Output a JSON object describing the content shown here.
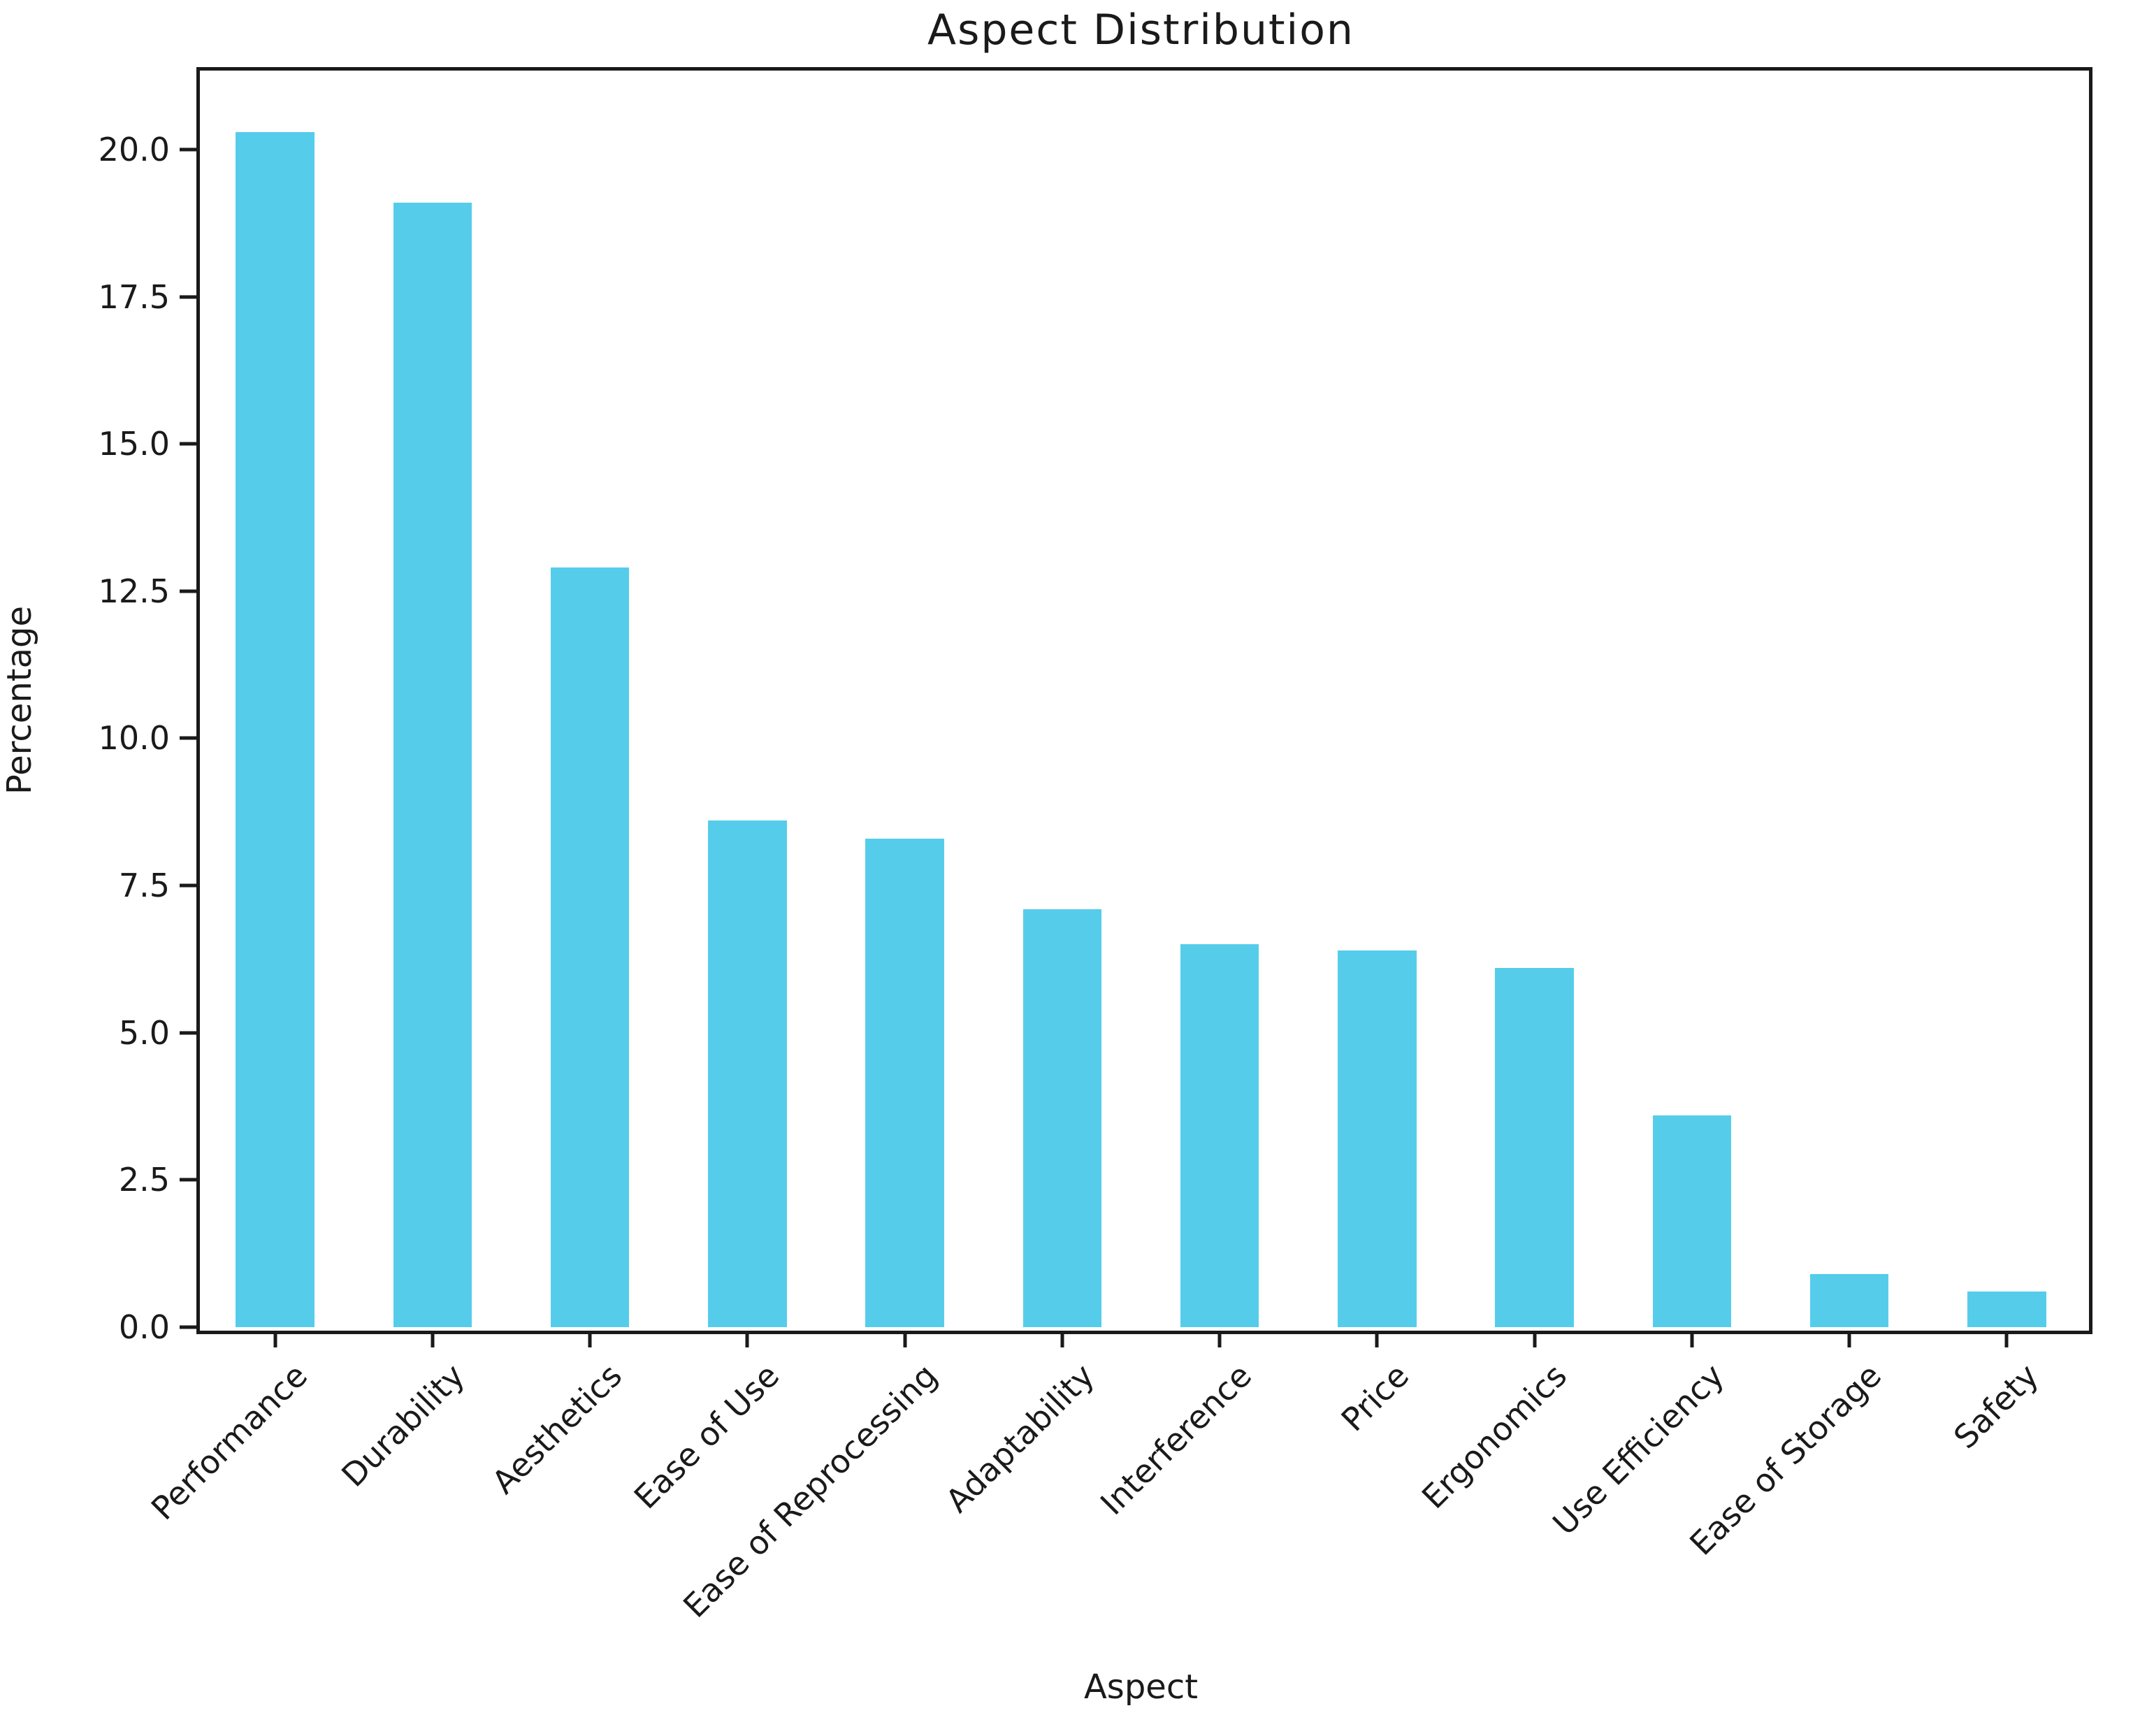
{
  "figure": {
    "background": "#ffffff",
    "text_color": "#1a1a1a",
    "spine_color": "#1a1a1a"
  },
  "chart_data": {
    "type": "bar",
    "title": "Aspect Distribution",
    "xlabel": "Aspect",
    "ylabel": "Percentage",
    "categories": [
      "Performance",
      "Durability",
      "Aesthetics",
      "Ease of Use",
      "Ease of Reprocessing",
      "Adaptability",
      "Interference",
      "Price",
      "Ergonomics",
      "Use Efficiency",
      "Ease of Storage",
      "Safety"
    ],
    "values": [
      20.3,
      19.1,
      12.9,
      8.6,
      8.3,
      7.1,
      6.5,
      6.4,
      6.1,
      3.6,
      0.9,
      0.6
    ],
    "ylim": [
      0,
      21.4
    ],
    "yticks": [
      0.0,
      2.5,
      5.0,
      7.5,
      10.0,
      12.5,
      15.0,
      17.5,
      20.0
    ],
    "ytick_labels": [
      "0.0",
      "2.5",
      "5.0",
      "7.5",
      "10.0",
      "12.5",
      "15.0",
      "17.5",
      "20.0"
    ],
    "bar_color": "#55cdea",
    "bar_width_fraction": 0.5,
    "x_tick_rotation": 45,
    "grid": false,
    "legend": null
  }
}
